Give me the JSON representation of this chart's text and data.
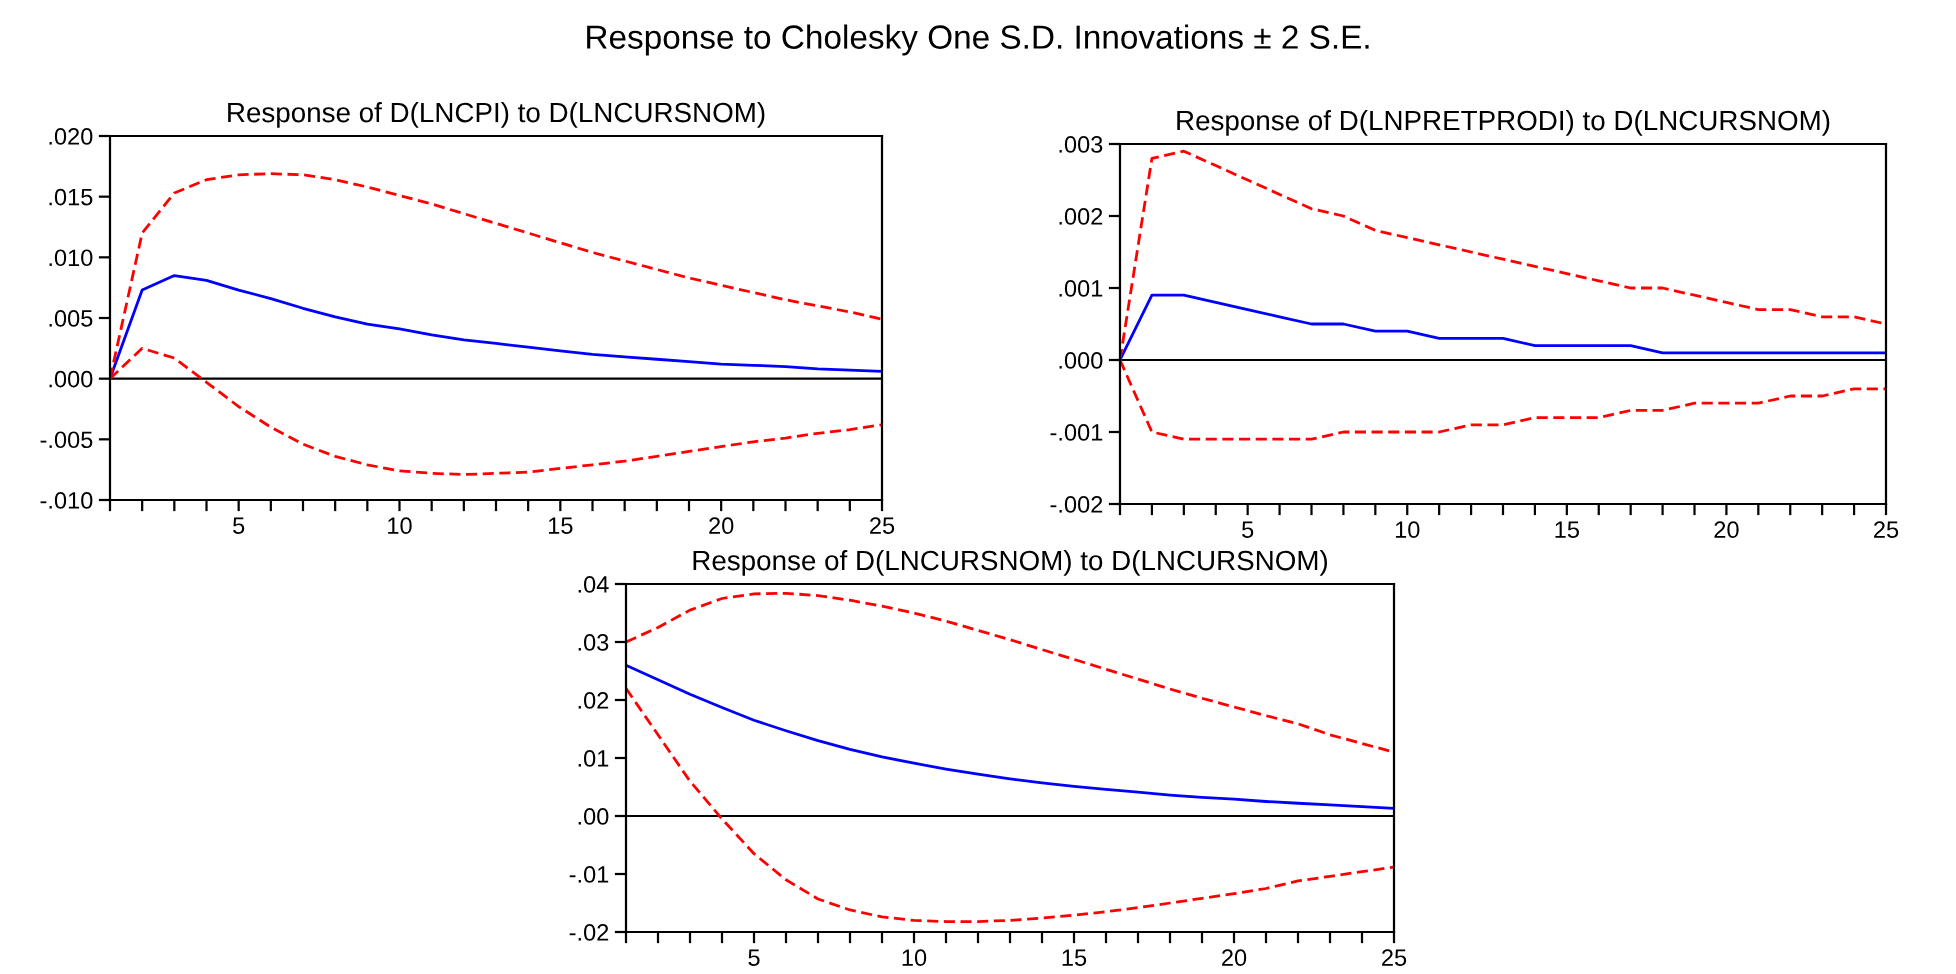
{
  "chart_data": [
    {
      "type": "line",
      "title": "Response of D(LNCPI) to D(LNCURSNOM)",
      "annotations": [
        "Response to Cholesky One S.D. Innovations ± 2 S.E."
      ],
      "x": [
        1,
        2,
        3,
        4,
        5,
        6,
        7,
        8,
        9,
        10,
        11,
        12,
        13,
        14,
        15,
        16,
        17,
        18,
        19,
        20,
        21,
        22,
        23,
        24,
        25
      ],
      "series": [
        {
          "color": "#0000ff",
          "line_style": "solid",
          "values": [
            0,
            0.0073,
            0.0085,
            0.0081,
            0.0073,
            0.0066,
            0.0058,
            0.0051,
            0.0045,
            0.0041,
            0.0036,
            0.0032,
            0.0029,
            0.0026,
            0.0023,
            0.002,
            0.0018,
            0.0016,
            0.0014,
            0.0012,
            0.0011,
            0.001,
            0.0008,
            0.0007,
            0.0006
          ]
        },
        {
          "color": "#ff0000",
          "line_style": "dashed",
          "values": [
            0,
            0.012,
            0.0153,
            0.0164,
            0.0168,
            0.0169,
            0.0168,
            0.0164,
            0.0158,
            0.0151,
            0.0144,
            0.0136,
            0.0128,
            0.012,
            0.0112,
            0.0104,
            0.0097,
            0.009,
            0.0083,
            0.0077,
            0.0071,
            0.0065,
            0.006,
            0.0055,
            0.0049
          ]
        },
        {
          "color": "#ff0000",
          "line_style": "dashed",
          "values": [
            0,
            0.0025,
            0.0017,
            -0.0003,
            -0.0023,
            -0.004,
            -0.0054,
            -0.0064,
            -0.0071,
            -0.0076,
            -0.0078,
            -0.0079,
            -0.0078,
            -0.0077,
            -0.0074,
            -0.0071,
            -0.0068,
            -0.0064,
            -0.006,
            -0.0056,
            -0.0052,
            -0.0049,
            -0.0045,
            -0.0042,
            -0.0038
          ]
        }
      ],
      "xlim": [
        1,
        25
      ],
      "xticks": [
        {
          "value": 1,
          "label": null
        },
        {
          "value": 2,
          "label": null
        },
        {
          "value": 3,
          "label": null
        },
        {
          "value": 4,
          "label": null
        },
        5,
        {
          "value": 6,
          "label": null
        },
        {
          "value": 7,
          "label": null
        },
        {
          "value": 8,
          "label": null
        },
        {
          "value": 9,
          "label": null
        },
        10,
        {
          "value": 11,
          "label": null
        },
        {
          "value": 12,
          "label": null
        },
        {
          "value": 13,
          "label": null
        },
        {
          "value": 14,
          "label": null
        },
        15,
        {
          "value": 16,
          "label": null
        },
        {
          "value": 17,
          "label": null
        },
        {
          "value": 18,
          "label": null
        },
        {
          "value": 19,
          "label": null
        },
        20,
        {
          "value": 21,
          "label": null
        },
        {
          "value": 22,
          "label": null
        },
        {
          "value": 23,
          "label": null
        },
        {
          "value": 24,
          "label": null
        },
        25
      ],
      "ylim": [
        -0.01,
        0.02
      ],
      "yticks": [
        {
          "value": -0.01,
          "label": "-.010"
        },
        {
          "value": -0.005,
          "label": "-.005"
        },
        {
          "value": 0,
          "label": ".000"
        },
        {
          "value": 0.005,
          "label": ".005"
        },
        {
          "value": 0.01,
          "label": ".010"
        },
        {
          "value": 0.015,
          "label": ".015"
        },
        {
          "value": 0.02,
          "label": ".020"
        }
      ],
      "ref_lines": [
        {
          "axis": "y",
          "value": 0,
          "color": "#000000"
        }
      ],
      "grid": false,
      "legend": false
    },
    {
      "type": "line",
      "title": "Response of D(LNPRETPRODI) to D(LNCURSNOM)",
      "x": [
        1,
        2,
        3,
        4,
        5,
        6,
        7,
        8,
        9,
        10,
        11,
        12,
        13,
        14,
        15,
        16,
        17,
        18,
        19,
        20,
        21,
        22,
        23,
        24,
        25
      ],
      "series": [
        {
          "color": "#0000ff",
          "line_style": "solid",
          "values": [
            0,
            0.0009,
            0.0009,
            0.0008,
            0.0007,
            0.0006,
            0.0005,
            0.0005,
            0.0004,
            0.0004,
            0.0003,
            0.0003,
            0.0003,
            0.0002,
            0.0002,
            0.0002,
            0.0002,
            0.0001,
            0.0001,
            0.0001,
            0.0001,
            0.0001,
            0.0001,
            0.0001,
            0.0001
          ]
        },
        {
          "color": "#ff0000",
          "line_style": "dashed",
          "values": [
            0,
            0.0028,
            0.0029,
            0.0027,
            0.0025,
            0.0023,
            0.0021,
            0.002,
            0.0018,
            0.0017,
            0.0016,
            0.0015,
            0.0014,
            0.0013,
            0.0012,
            0.0011,
            0.001,
            0.001,
            0.0009,
            0.0008,
            0.0007,
            0.0007,
            0.0006,
            0.0006,
            0.0005
          ]
        },
        {
          "color": "#ff0000",
          "line_style": "dashed",
          "values": [
            0,
            -0.001,
            -0.0011,
            -0.0011,
            -0.0011,
            -0.0011,
            -0.0011,
            -0.001,
            -0.001,
            -0.001,
            -0.001,
            -0.0009,
            -0.0009,
            -0.0008,
            -0.0008,
            -0.0008,
            -0.0007,
            -0.0007,
            -0.0006,
            -0.0006,
            -0.0006,
            -0.0005,
            -0.0005,
            -0.0004,
            -0.0004
          ]
        }
      ],
      "xlim": [
        1,
        25
      ],
      "xticks": [
        {
          "value": 1,
          "label": null
        },
        {
          "value": 2,
          "label": null
        },
        {
          "value": 3,
          "label": null
        },
        {
          "value": 4,
          "label": null
        },
        5,
        {
          "value": 6,
          "label": null
        },
        {
          "value": 7,
          "label": null
        },
        {
          "value": 8,
          "label": null
        },
        {
          "value": 9,
          "label": null
        },
        10,
        {
          "value": 11,
          "label": null
        },
        {
          "value": 12,
          "label": null
        },
        {
          "value": 13,
          "label": null
        },
        {
          "value": 14,
          "label": null
        },
        15,
        {
          "value": 16,
          "label": null
        },
        {
          "value": 17,
          "label": null
        },
        {
          "value": 18,
          "label": null
        },
        {
          "value": 19,
          "label": null
        },
        20,
        {
          "value": 21,
          "label": null
        },
        {
          "value": 22,
          "label": null
        },
        {
          "value": 23,
          "label": null
        },
        {
          "value": 24,
          "label": null
        },
        25
      ],
      "ylim": [
        -0.002,
        0.003
      ],
      "yticks": [
        {
          "value": -0.002,
          "label": "-.002"
        },
        {
          "value": -0.001,
          "label": "-.001"
        },
        {
          "value": 0,
          "label": ".000"
        },
        {
          "value": 0.001,
          "label": ".001"
        },
        {
          "value": 0.002,
          "label": ".002"
        },
        {
          "value": 0.003,
          "label": ".003"
        }
      ],
      "ref_lines": [
        {
          "axis": "y",
          "value": 0,
          "color": "#000000"
        }
      ],
      "grid": false,
      "legend": false
    },
    {
      "type": "line",
      "title": "Response of D(LNCURSNOM) to D(LNCURSNOM)",
      "x": [
        1,
        2,
        3,
        4,
        5,
        6,
        7,
        8,
        9,
        10,
        11,
        12,
        13,
        14,
        15,
        16,
        17,
        18,
        19,
        20,
        21,
        22,
        23,
        24,
        25
      ],
      "series": [
        {
          "color": "#0000ff",
          "line_style": "solid",
          "values": [
            0.026,
            0.0235,
            0.021,
            0.0187,
            0.0165,
            0.0147,
            0.013,
            0.0115,
            0.0102,
            0.0091,
            0.0081,
            0.0072,
            0.0064,
            0.0057,
            0.0051,
            0.0046,
            0.0041,
            0.0036,
            0.0032,
            0.0029,
            0.0025,
            0.0022,
            0.0019,
            0.0016,
            0.0013
          ]
        },
        {
          "color": "#ff0000",
          "line_style": "dashed",
          "values": [
            0.03,
            0.0325,
            0.0355,
            0.0375,
            0.0383,
            0.0384,
            0.038,
            0.0372,
            0.0362,
            0.035,
            0.0336,
            0.032,
            0.0304,
            0.0287,
            0.027,
            0.0253,
            0.0236,
            0.0219,
            0.0203,
            0.0188,
            0.0173,
            0.0159,
            0.014,
            0.0125,
            0.011
          ]
        },
        {
          "color": "#ff0000",
          "line_style": "dashed",
          "values": [
            0.022,
            0.014,
            0.006,
            -0.0005,
            -0.0065,
            -0.011,
            -0.0143,
            -0.0162,
            -0.0174,
            -0.018,
            -0.0182,
            -0.0182,
            -0.018,
            -0.0176,
            -0.0171,
            -0.0165,
            -0.0158,
            -0.015,
            -0.0142,
            -0.0134,
            -0.0125,
            -0.0112,
            -0.0104,
            -0.0096,
            -0.0088
          ]
        }
      ],
      "xlim": [
        1,
        25
      ],
      "xticks": [
        {
          "value": 1,
          "label": null
        },
        {
          "value": 2,
          "label": null
        },
        {
          "value": 3,
          "label": null
        },
        {
          "value": 4,
          "label": null
        },
        5,
        {
          "value": 6,
          "label": null
        },
        {
          "value": 7,
          "label": null
        },
        {
          "value": 8,
          "label": null
        },
        {
          "value": 9,
          "label": null
        },
        10,
        {
          "value": 11,
          "label": null
        },
        {
          "value": 12,
          "label": null
        },
        {
          "value": 13,
          "label": null
        },
        {
          "value": 14,
          "label": null
        },
        15,
        {
          "value": 16,
          "label": null
        },
        {
          "value": 17,
          "label": null
        },
        {
          "value": 18,
          "label": null
        },
        {
          "value": 19,
          "label": null
        },
        20,
        {
          "value": 21,
          "label": null
        },
        {
          "value": 22,
          "label": null
        },
        {
          "value": 23,
          "label": null
        },
        {
          "value": 24,
          "label": null
        },
        25
      ],
      "ylim": [
        -0.02,
        0.04
      ],
      "yticks": [
        {
          "value": -0.02,
          "label": "-.02"
        },
        {
          "value": -0.01,
          "label": "-.01"
        },
        {
          "value": 0,
          "label": ".00"
        },
        {
          "value": 0.01,
          "label": ".01"
        },
        {
          "value": 0.02,
          "label": ".02"
        },
        {
          "value": 0.03,
          "label": ".03"
        },
        {
          "value": 0.04,
          "label": ".04"
        }
      ],
      "ref_lines": [
        {
          "axis": "y",
          "value": 0,
          "color": "#000000"
        }
      ],
      "grid": false,
      "legend": false
    }
  ]
}
